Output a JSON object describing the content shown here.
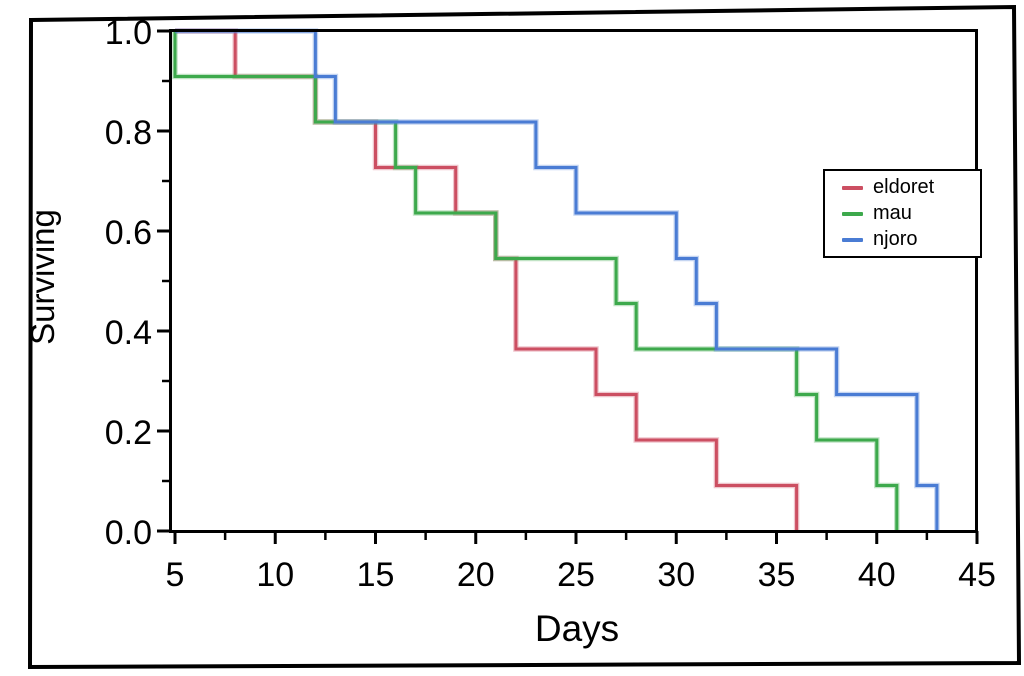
{
  "chart_data": {
    "type": "line",
    "subtype": "kaplan-meier-step",
    "title": "",
    "xlabel": "Days",
    "ylabel": "Surviving",
    "grid": false,
    "legend_position": "middle-right",
    "x_axis": {
      "title": "Days",
      "range": [
        5,
        45
      ],
      "major_ticks": [
        5,
        10,
        15,
        20,
        25,
        30,
        35,
        40,
        45
      ],
      "tick_labels": [
        "5",
        "10",
        "15",
        "20",
        "25",
        "30",
        "35",
        "40",
        "45"
      ],
      "minor_ticks": [
        7.5,
        12.5,
        17.5,
        22.5,
        27.5,
        32.5,
        37.5,
        42.5
      ]
    },
    "y_axis": {
      "title": "Surviving",
      "range": [
        0.0,
        1.0
      ],
      "major_ticks": [
        0.0,
        0.2,
        0.4,
        0.6,
        0.8,
        1.0
      ],
      "tick_labels": [
        "0.0",
        "0.2",
        "0.4",
        "0.6",
        "0.8",
        "1.0"
      ],
      "minor_ticks": [
        0.1,
        0.3,
        0.5,
        0.7,
        0.9
      ]
    },
    "series": [
      {
        "name": "eldoret",
        "color": "#cc4f62",
        "points": [
          [
            5,
            1.0
          ],
          [
            8,
            1.0
          ],
          [
            8,
            0.909
          ],
          [
            12,
            0.909
          ],
          [
            12,
            0.818
          ],
          [
            15,
            0.818
          ],
          [
            15,
            0.727
          ],
          [
            19,
            0.727
          ],
          [
            19,
            0.636
          ],
          [
            21,
            0.636
          ],
          [
            21,
            0.545
          ],
          [
            22,
            0.545
          ],
          [
            22,
            0.364
          ],
          [
            26,
            0.364
          ],
          [
            26,
            0.273
          ],
          [
            28,
            0.273
          ],
          [
            28,
            0.182
          ],
          [
            32,
            0.182
          ],
          [
            32,
            0.091
          ],
          [
            36,
            0.091
          ],
          [
            36,
            0.0
          ]
        ]
      },
      {
        "name": "mau",
        "color": "#3da94c",
        "points": [
          [
            5,
            1.0
          ],
          [
            5,
            0.909
          ],
          [
            12,
            0.909
          ],
          [
            12,
            0.818
          ],
          [
            16,
            0.818
          ],
          [
            16,
            0.727
          ],
          [
            17,
            0.727
          ],
          [
            17,
            0.636
          ],
          [
            21,
            0.636
          ],
          [
            21,
            0.545
          ],
          [
            27,
            0.545
          ],
          [
            27,
            0.455
          ],
          [
            28,
            0.455
          ],
          [
            28,
            0.364
          ],
          [
            36,
            0.364
          ],
          [
            36,
            0.273
          ],
          [
            37,
            0.273
          ],
          [
            37,
            0.182
          ],
          [
            40,
            0.182
          ],
          [
            40,
            0.091
          ],
          [
            41,
            0.091
          ],
          [
            41,
            0.0
          ]
        ]
      },
      {
        "name": "njoro",
        "color": "#4a7cd4",
        "points": [
          [
            5,
            1.0
          ],
          [
            12,
            1.0
          ],
          [
            12,
            0.909
          ],
          [
            13,
            0.909
          ],
          [
            13,
            0.818
          ],
          [
            23,
            0.818
          ],
          [
            23,
            0.727
          ],
          [
            25,
            0.727
          ],
          [
            25,
            0.636
          ],
          [
            30,
            0.636
          ],
          [
            30,
            0.545
          ],
          [
            31,
            0.545
          ],
          [
            31,
            0.455
          ],
          [
            32,
            0.455
          ],
          [
            32,
            0.364
          ],
          [
            38,
            0.364
          ],
          [
            38,
            0.273
          ],
          [
            42,
            0.273
          ],
          [
            42,
            0.091
          ],
          [
            43,
            0.091
          ],
          [
            43,
            0.0
          ]
        ]
      }
    ],
    "frame_color": "#000000",
    "text_color": "#000000"
  }
}
